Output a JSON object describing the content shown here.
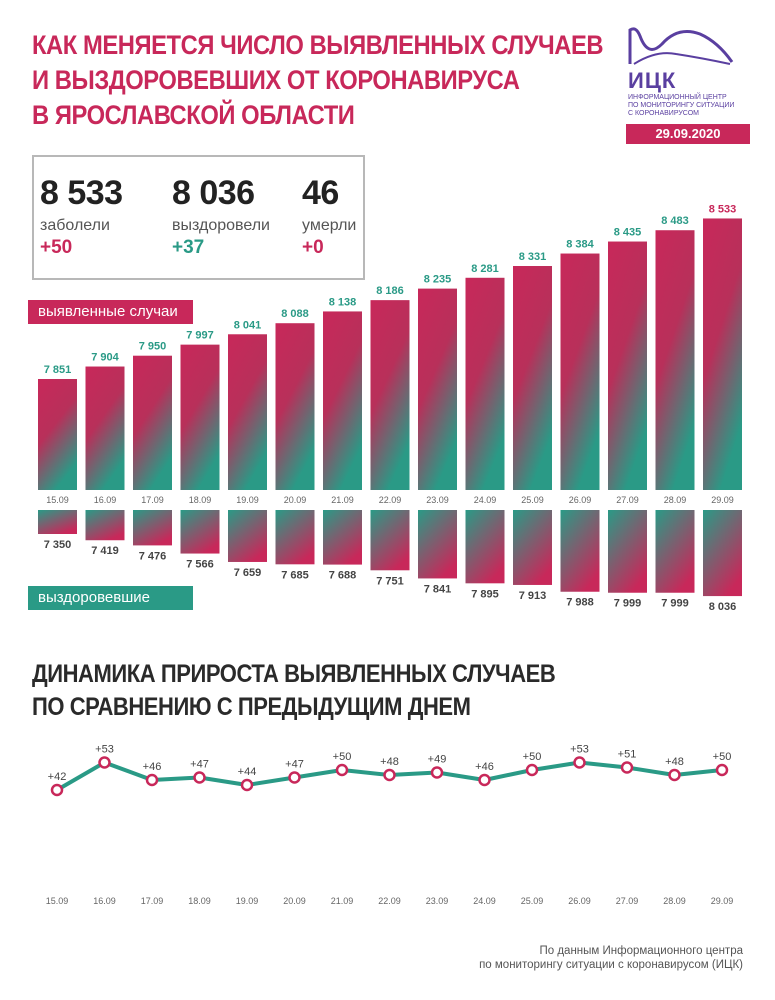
{
  "header": {
    "title_lines": [
      "КАК МЕНЯЕТСЯ ЧИСЛО ВЫЯВЛЕННЫХ СЛУЧАЕВ",
      "И ВЫЗДОРОВЕВШИХ ОТ КОРОНАВИРУСА",
      "В ЯРОСЛАВСКОЙ ОБЛАСТИ"
    ],
    "logo_abbr": "ИЦК",
    "logo_sub_lines": [
      "ИНФОРМАЦИОННЫЙ ЦЕНТР",
      "ПО МОНИТОРИНГУ СИТУАЦИИ",
      "С КОРОНАВИРУСОМ"
    ],
    "date": "29.09.2020"
  },
  "stats": {
    "infected": {
      "value": "8 533",
      "label": "заболели",
      "delta": "+50"
    },
    "recovered": {
      "value": "8 036",
      "label": "выздоровели",
      "delta": "+37"
    },
    "died": {
      "value": "46",
      "label": "умерли",
      "delta": "+0"
    }
  },
  "legend": {
    "cases": "выявленные случаи",
    "recovered": "выздоровевшие"
  },
  "colors": {
    "red": "#c8285a",
    "green": "#2a9a86",
    "logo": "#5a3fa0"
  },
  "subtitle_lines": [
    "ДИНАМИКА ПРИРОСТА ВЫЯВЛЕННЫХ СЛУЧАЕВ",
    "ПО СРАВНЕНИЮ С ПРЕДЫДУЩИМ ДНЕМ"
  ],
  "footnote_lines": [
    "По данным Информационного центра",
    "по мониторингу ситуации с коронавирусом (ИЦК)"
  ],
  "chart_data": [
    {
      "type": "bar",
      "categories": [
        "15.09",
        "16.09",
        "17.09",
        "18.09",
        "19.09",
        "20.09",
        "21.09",
        "22.09",
        "23.09",
        "24.09",
        "25.09",
        "26.09",
        "27.09",
        "28.09",
        "29.09"
      ],
      "series": [
        {
          "name": "выявленные случаи",
          "values": [
            7851,
            7904,
            7950,
            7997,
            8041,
            8088,
            8138,
            8186,
            8235,
            8281,
            8331,
            8384,
            8435,
            8483,
            8533
          ],
          "labels": [
            "7 851",
            "7 904",
            "7 950",
            "7 997",
            "8 041",
            "8 088",
            "8 138",
            "8 186",
            "8 235",
            "8 281",
            "8 331",
            "8 384",
            "8 435",
            "8 483",
            "8 533"
          ]
        },
        {
          "name": "выздоровевшие",
          "values": [
            7350,
            7419,
            7476,
            7566,
            7659,
            7685,
            7688,
            7751,
            7841,
            7895,
            7913,
            7988,
            7999,
            7999,
            8036
          ],
          "labels": [
            "7 350",
            "7 419",
            "7 476",
            "7 566",
            "7 659",
            "7 685",
            "7 688",
            "7 751",
            "7 841",
            "7 895",
            "7 913",
            "7 988",
            "7 999",
            "7 999",
            "8 036"
          ]
        }
      ]
    },
    {
      "type": "line",
      "categories": [
        "15.09",
        "16.09",
        "17.09",
        "18.09",
        "19.09",
        "20.09",
        "21.09",
        "22.09",
        "23.09",
        "24.09",
        "25.09",
        "26.09",
        "27.09",
        "28.09",
        "29.09"
      ],
      "values": [
        42,
        53,
        46,
        47,
        44,
        47,
        50,
        48,
        49,
        46,
        50,
        53,
        51,
        48,
        50
      ],
      "labels": [
        "+42",
        "+53",
        "+46",
        "+47",
        "+44",
        "+47",
        "+50",
        "+48",
        "+49",
        "+46",
        "+50",
        "+53",
        "+51",
        "+48",
        "+50"
      ]
    }
  ]
}
